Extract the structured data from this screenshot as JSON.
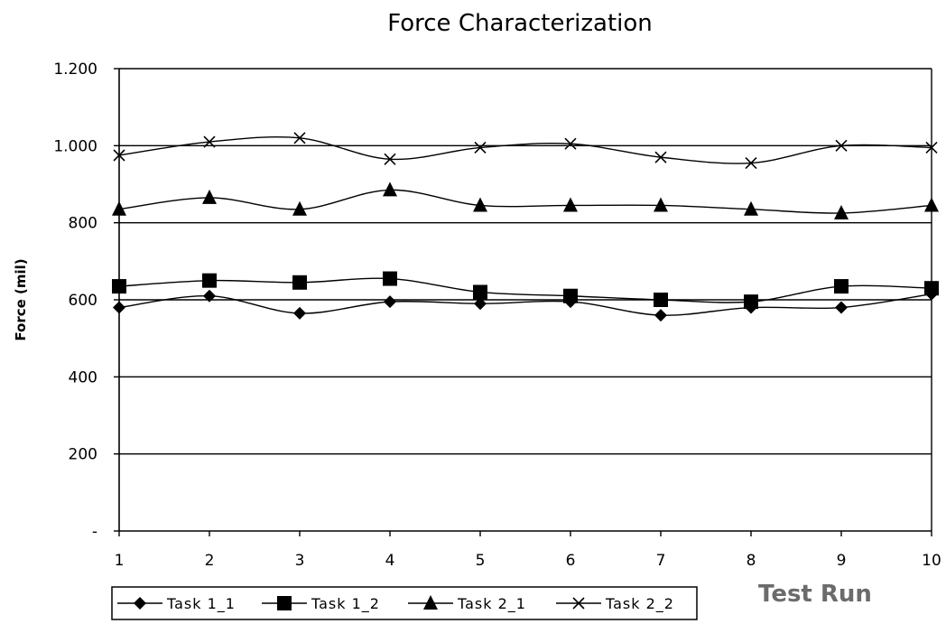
{
  "chart_data": {
    "type": "line",
    "title": "Force Characterization",
    "xlabel": "Test Run",
    "ylabel": "Force (mil)",
    "x": [
      1,
      2,
      3,
      4,
      5,
      6,
      7,
      8,
      9,
      10
    ],
    "ylim": [
      0,
      1200
    ],
    "y_ticks": [
      0,
      200,
      400,
      600,
      800,
      1000,
      1200
    ],
    "y_tick_labels": [
      "-",
      "200",
      "400",
      "600",
      "800",
      "1.000",
      "1.200"
    ],
    "x_tick_labels": [
      "1",
      "2",
      "3",
      "4",
      "5",
      "6",
      "7",
      "8",
      "9",
      "10"
    ],
    "grid": "horizontal",
    "legend_position": "bottom-left",
    "series": [
      {
        "name": "Task 1_1",
        "marker": "diamond",
        "values": [
          580,
          610,
          565,
          595,
          590,
          595,
          560,
          580,
          580,
          615
        ]
      },
      {
        "name": "Task 1_2",
        "marker": "square",
        "values": [
          635,
          650,
          645,
          655,
          620,
          610,
          600,
          595,
          635,
          630
        ]
      },
      {
        "name": "Task 2_1",
        "marker": "triangle",
        "values": [
          835,
          865,
          835,
          885,
          845,
          845,
          845,
          835,
          825,
          845
        ]
      },
      {
        "name": "Task 2_2",
        "marker": "x",
        "values": [
          975,
          1010,
          1020,
          965,
          995,
          1005,
          970,
          955,
          1000,
          995
        ]
      }
    ],
    "line_color": "#000000"
  }
}
